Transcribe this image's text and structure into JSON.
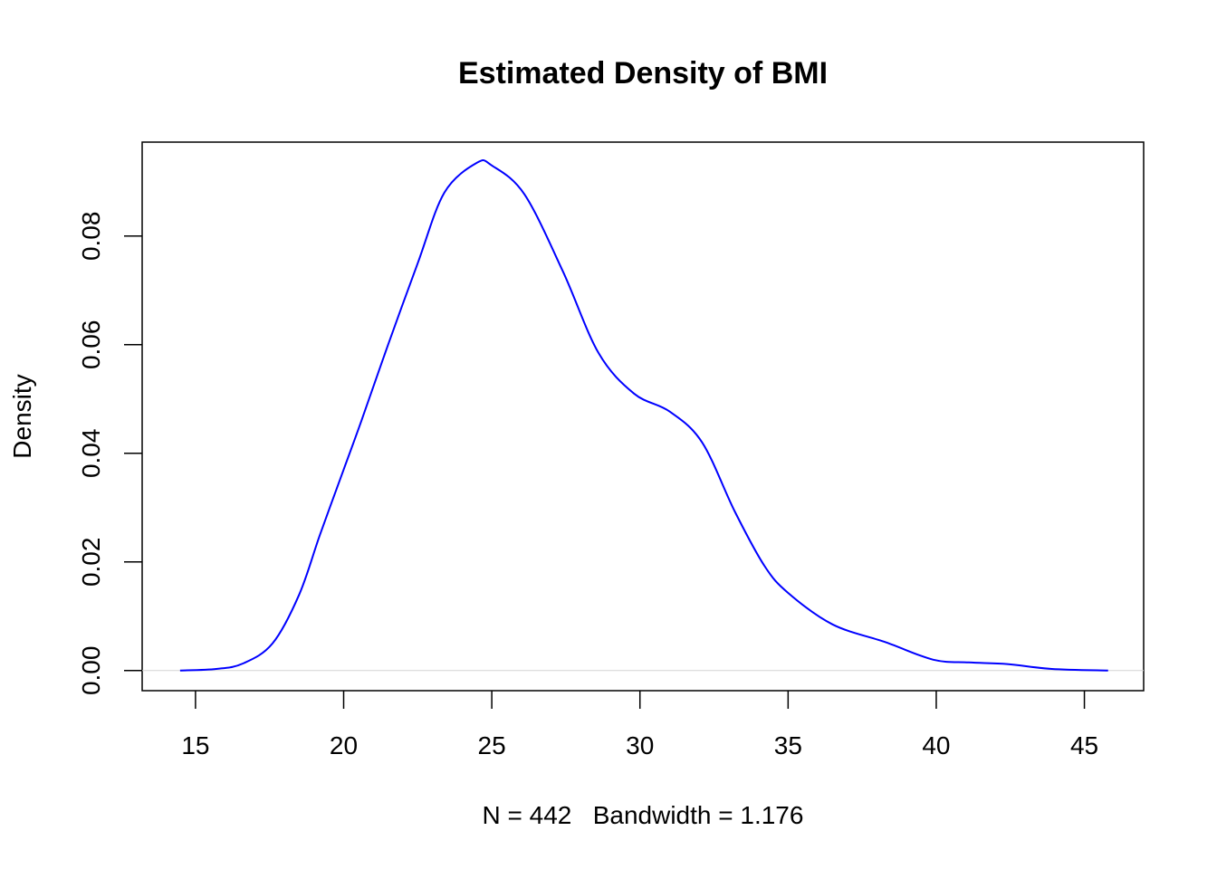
{
  "chart_data": {
    "type": "line",
    "title": "Estimated Density of BMI",
    "xlabel": "N = 442   Bandwidth = 1.176",
    "ylabel": "Density",
    "xlim": [
      13.2,
      47.0
    ],
    "ylim": [
      -0.0037,
      0.0973
    ],
    "x_ticks": [
      15,
      20,
      25,
      30,
      35,
      40,
      45
    ],
    "x_tick_labels": [
      "15",
      "20",
      "25",
      "30",
      "35",
      "40",
      "45"
    ],
    "y_ticks": [
      0,
      0.02,
      0.04,
      0.06,
      0.08
    ],
    "y_tick_labels": [
      "0.00",
      "0.02",
      "0.04",
      "0.06",
      "0.08"
    ],
    "grid": false,
    "zero_line": true,
    "series": [
      {
        "name": "density",
        "color": "#0000ff",
        "x": [
          14.48,
          15.7,
          16.6,
          17.6,
          18.5,
          19.2,
          20.0,
          20.6,
          21.5,
          22.5,
          23.4,
          24.5,
          25.0,
          26.1,
          27.4,
          28.6,
          29.8,
          31.0,
          32.1,
          33.2,
          34.2,
          35.0,
          36.5,
          38.3,
          39.9,
          41.1,
          42.4,
          43.9,
          45.8
        ],
        "y": [
          0.0,
          0.0003,
          0.0013,
          0.005,
          0.014,
          0.025,
          0.037,
          0.046,
          0.06,
          0.075,
          0.088,
          0.0935,
          0.093,
          0.0877,
          0.0735,
          0.0585,
          0.051,
          0.0477,
          0.042,
          0.0293,
          0.0193,
          0.0143,
          0.0085,
          0.0052,
          0.002,
          0.0015,
          0.0012,
          0.0003,
          0.0
        ]
      }
    ]
  }
}
